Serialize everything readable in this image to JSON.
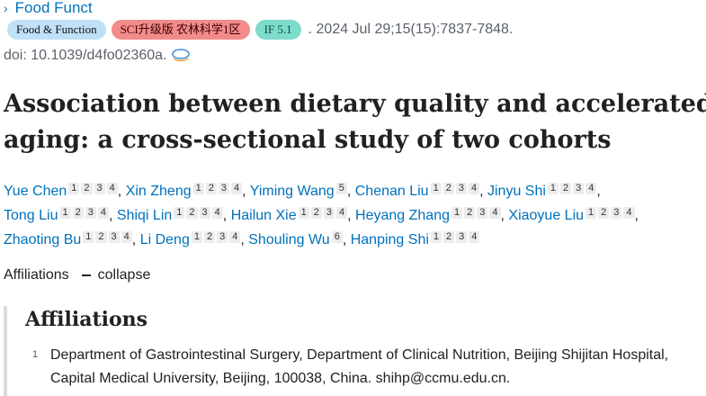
{
  "journal": {
    "chevron": "›",
    "name": "Food Funct"
  },
  "badges": {
    "journal_full": "Food & Function",
    "ranking": "SCI升级版 农林科学1区",
    "impact_factor": "IF 5.1"
  },
  "citation": ". 2024 Jul 29;15(15):7837-7848.",
  "doi": "doi: 10.1039/d4fo02360a.",
  "doi_icon": "external-link-icon",
  "title": "Association between dietary quality and accelerated aging: a cross-sectional study of two cohorts",
  "authors": [
    {
      "name": "Yue Chen",
      "affs": [
        "1",
        "2",
        "3",
        "4"
      ],
      "sep": ","
    },
    {
      "name": "Xin Zheng",
      "affs": [
        "1",
        "2",
        "3",
        "4"
      ],
      "sep": ","
    },
    {
      "name": "Yiming Wang",
      "affs": [
        "5"
      ],
      "sep": ","
    },
    {
      "name": "Chenan Liu",
      "affs": [
        "1",
        "2",
        "3",
        "4"
      ],
      "sep": ","
    },
    {
      "name": "Jinyu Shi",
      "affs": [
        "1",
        "2",
        "3",
        "4"
      ],
      "sep": ","
    },
    {
      "name": "Tong Liu",
      "affs": [
        "1",
        "2",
        "3",
        "4"
      ],
      "sep": ","
    },
    {
      "name": "Shiqi Lin",
      "affs": [
        "1",
        "2",
        "3",
        "4"
      ],
      "sep": ","
    },
    {
      "name": "Hailun Xie",
      "affs": [
        "1",
        "2",
        "3",
        "4"
      ],
      "sep": ","
    },
    {
      "name": "Heyang Zhang",
      "affs": [
        "1",
        "2",
        "3",
        "4"
      ],
      "sep": ","
    },
    {
      "name": "Xiaoyue Liu",
      "affs": [
        "1",
        "2",
        "3",
        "4"
      ],
      "sep": ","
    },
    {
      "name": "Zhaoting Bu",
      "affs": [
        "1",
        "2",
        "3",
        "4"
      ],
      "sep": ","
    },
    {
      "name": "Li Deng",
      "affs": [
        "1",
        "2",
        "3",
        "4"
      ],
      "sep": ","
    },
    {
      "name": "Shouling Wu",
      "affs": [
        "6"
      ],
      "sep": ","
    },
    {
      "name": "Hanping Shi",
      "affs": [
        "1",
        "2",
        "3",
        "4"
      ],
      "sep": ""
    }
  ],
  "affiliations_toggle": {
    "label": "Affiliations",
    "action": "collapse"
  },
  "affiliations": {
    "heading": "Affiliations",
    "items": [
      {
        "num": "1",
        "text": "Department of Gastrointestinal Surgery, Department of Clinical Nutrition, Beijing Shijitan Hospital, Capital Medical University, Beijing, 100038, China. shihp@ccmu.edu.cn."
      }
    ]
  }
}
